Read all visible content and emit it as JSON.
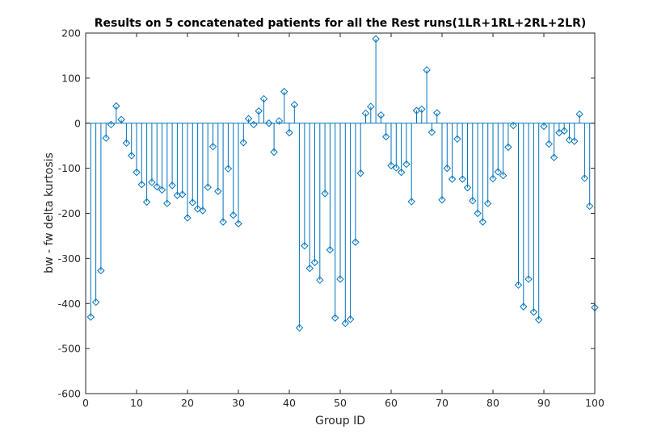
{
  "chart_data": {
    "type": "stem",
    "title": "Results on 5 concatenated patients for all the Rest runs(1LR+1RL+2RL+2LR)",
    "xlabel": "Group ID",
    "ylabel": "bw - fw delta kurtosis",
    "xlim": [
      0,
      100
    ],
    "ylim": [
      -600,
      200
    ],
    "xticks": [
      "0",
      "10",
      "20",
      "30",
      "40",
      "50",
      "60",
      "70",
      "80",
      "90",
      "100"
    ],
    "yticks": [
      "200",
      "100",
      "0",
      "-100",
      "-200",
      "-300",
      "-400",
      "-500",
      "-600"
    ],
    "grid": false,
    "color": "#0072BD",
    "marker": "diamond",
    "x": [
      1,
      2,
      3,
      4,
      5,
      6,
      7,
      8,
      9,
      10,
      11,
      12,
      13,
      14,
      15,
      16,
      17,
      18,
      19,
      20,
      21,
      22,
      23,
      24,
      25,
      26,
      27,
      28,
      29,
      30,
      31,
      32,
      33,
      34,
      35,
      36,
      37,
      38,
      39,
      40,
      41,
      42,
      43,
      44,
      45,
      46,
      47,
      48,
      49,
      50,
      51,
      52,
      53,
      54,
      55,
      56,
      57,
      58,
      59,
      60,
      61,
      62,
      63,
      64,
      65,
      66,
      67,
      68,
      69,
      70,
      71,
      72,
      73,
      74,
      75,
      76,
      77,
      78,
      79,
      80,
      81,
      82,
      83,
      84,
      85,
      86,
      87,
      88,
      89,
      90,
      91,
      92,
      93,
      94,
      95,
      96,
      97,
      98,
      99,
      100
    ],
    "values": [
      -430,
      -397,
      -327,
      -33,
      -3,
      38,
      8,
      -44,
      -72,
      -109,
      -136,
      -175,
      -131,
      -141,
      -148,
      -178,
      -138,
      -160,
      -158,
      -210,
      -176,
      -190,
      -194,
      -142,
      -52,
      -151,
      -219,
      -101,
      -204,
      -223,
      -43,
      10,
      -3,
      27,
      54,
      0,
      -64,
      5,
      70,
      -21,
      41,
      -454,
      -272,
      -322,
      -309,
      -348,
      -156,
      -281,
      -432,
      -346,
      -444,
      -435,
      -264,
      -111,
      22,
      37,
      187,
      18,
      -30,
      -94,
      -99,
      -109,
      -91,
      -174,
      28,
      31,
      118,
      -20,
      23,
      -170,
      -100,
      -124,
      -35,
      -124,
      -143,
      -172,
      -200,
      -219,
      -178,
      -123,
      -108,
      -116,
      -53,
      -5,
      -359,
      -407,
      -346,
      -419,
      -436,
      -7,
      -46,
      -76,
      -21,
      -17,
      -37,
      -40,
      20,
      -122,
      -184,
      -409
    ]
  }
}
